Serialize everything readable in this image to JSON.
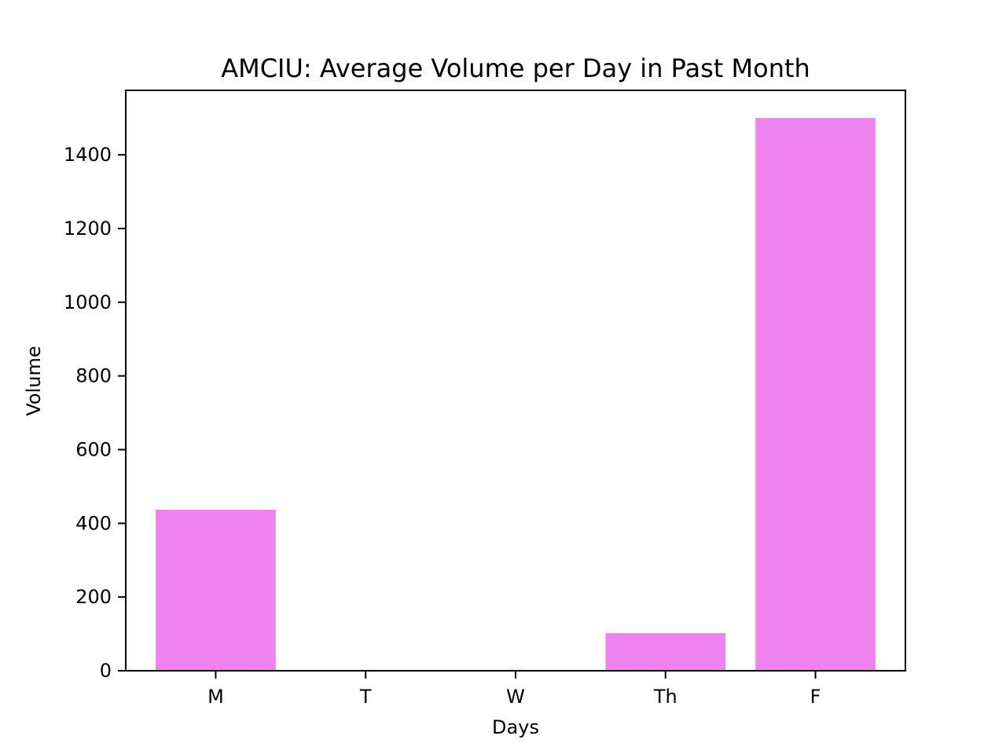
{
  "chart_data": {
    "type": "bar",
    "title": "AMCIU: Average Volume per Day in Past Month",
    "xlabel": "Days",
    "ylabel": "Volume",
    "categories": [
      "M",
      "T",
      "W",
      "Th",
      "F"
    ],
    "values": [
      437,
      0,
      0,
      102,
      1500
    ],
    "ylim": [
      0,
      1575
    ],
    "yticks": [
      0,
      200,
      400,
      600,
      800,
      1000,
      1200,
      1400
    ],
    "bar_color": "#ee82ee",
    "grid": false,
    "legend": "none"
  }
}
